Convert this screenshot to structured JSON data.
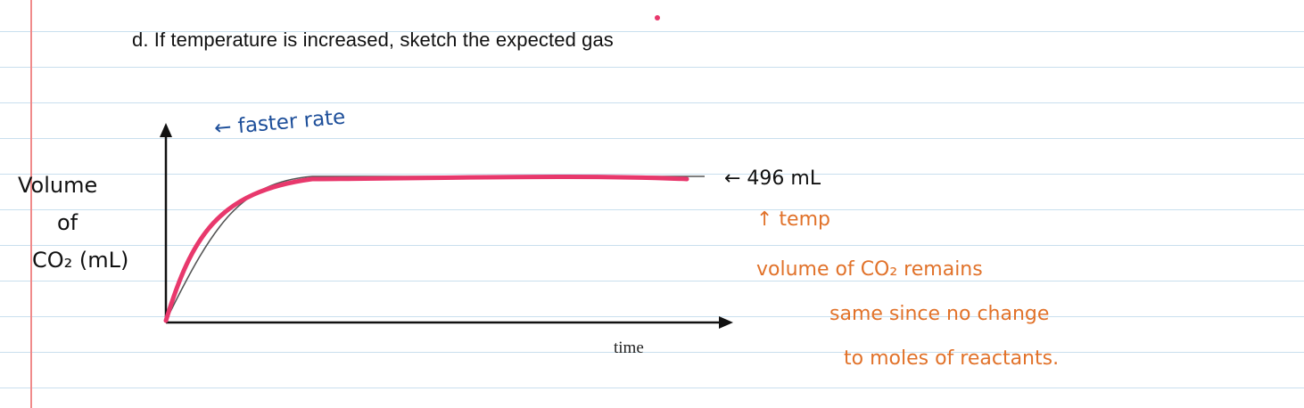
{
  "question": {
    "text": "d.  If temperature is increased, sketch the expected gas"
  },
  "graph": {
    "x_axis_label": "time",
    "y_axis_label_line1": "Volume",
    "y_axis_label_line2": "of",
    "y_axis_label_line3": "CO₂ (mL)"
  },
  "annotations": {
    "faster_rate": "← faster rate",
    "final_volume": "← 496 mL",
    "temp_note": "↑ temp",
    "explanation_line1": "volume of CO₂ remains",
    "explanation_line2": "same since no change",
    "explanation_line3": "to moles of reactants."
  },
  "colors": {
    "original_curve": "#555555",
    "sketched_curve": "#e8386c",
    "handwriting_blue": "#1e4f9a",
    "handwriting_orange": "#e1722a",
    "margin_line": "#f08a8a",
    "ruled_line": "#c9dfee"
  }
}
